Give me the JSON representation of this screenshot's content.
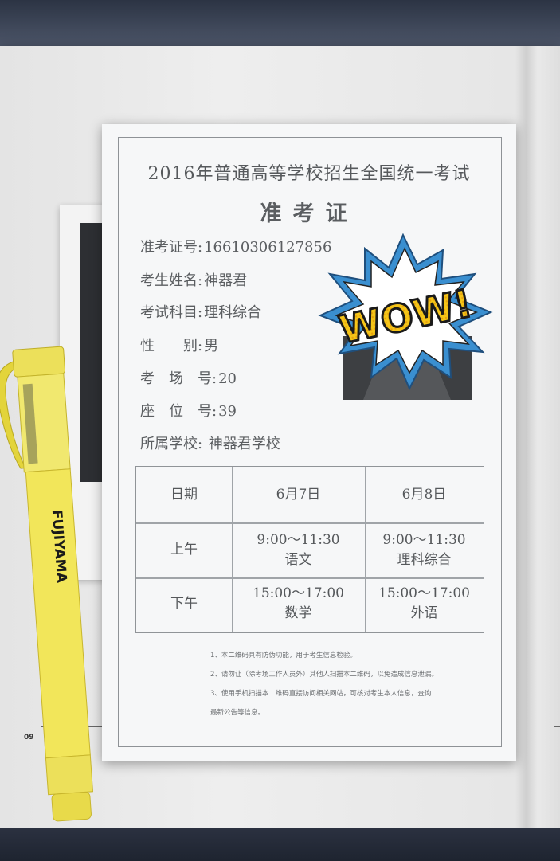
{
  "exam_title": "2016年普通高等学校招生全国统一考试",
  "card_title": "准考证",
  "fields": [
    {
      "label": "准考证号:",
      "value": "16610306127856"
    },
    {
      "label": "考生姓名:",
      "value": "神器君"
    },
    {
      "label": "考试科目:",
      "value": "理科综合"
    },
    {
      "label": "性　　别:",
      "value": "男"
    },
    {
      "label": "考　场　号:",
      "value": "20"
    },
    {
      "label": "座　位　号:",
      "value": "39"
    },
    {
      "label": "所属学校: ",
      "value": "神器君学校"
    }
  ],
  "schedule": {
    "header": [
      "日期",
      "6月7日",
      "6月8日"
    ],
    "rows": [
      {
        "label": "上午",
        "day1_time": "9:00～11:30",
        "day1_subject": "语文",
        "day2_time": "9:00～11:30",
        "day2_subject": "理科综合"
      },
      {
        "label": "下午",
        "day1_time": "15:00～17:00",
        "day1_subject": "数学",
        "day2_time": "15:00～17:00",
        "day2_subject": "外语"
      }
    ]
  },
  "notes": [
    "1、本二维码具有防伪功能，用于考生信息检验。",
    "2、请勿让（除考场工作人员外）其他人扫描本二维码，以免造成信息泄漏。",
    "3、使用手机扫描本二维码直接访问相关网站，可核对考生本人信息，查询",
    "最新公告等信息。"
  ],
  "sticker_text": "WOW!",
  "pen_brand": "FUJIYAMA",
  "page_number": "09",
  "colors": {
    "pen_body": "#f2e65a",
    "sticker_blue": "#3a8fd0",
    "sticker_yellow": "#f5c518",
    "text_gray": "#5b5e61"
  }
}
